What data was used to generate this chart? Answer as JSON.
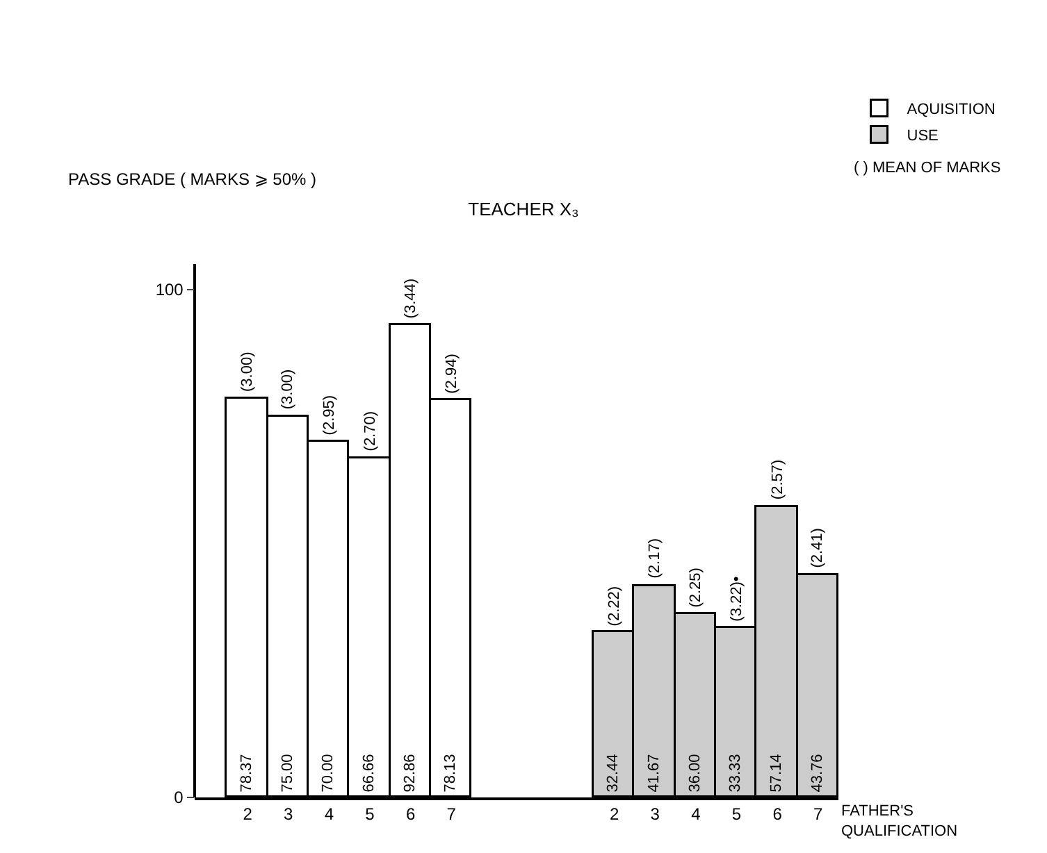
{
  "chart_data": {
    "type": "bar",
    "title": "TEACHER X₃",
    "subtitle": "PASS GRADE ( MARKS ⩾ 50% )",
    "xlabel": "FATHER'S QUALIFICATION",
    "categories": [
      "2",
      "3",
      "4",
      "5",
      "6",
      "7",
      null,
      null,
      null,
      "2",
      "3",
      "4",
      "5",
      "6",
      "7"
    ],
    "series": [
      {
        "name": "AQUISITION",
        "color": "#ffffff",
        "values": [
          78.37,
          75.0,
          70.0,
          66.66,
          92.86,
          78.13,
          null,
          null,
          null,
          null,
          null,
          null,
          null,
          null,
          null
        ],
        "value_labels": [
          "78.37",
          "75.00",
          "70.00",
          "66.66",
          "92.86",
          "78.13",
          null,
          null,
          null,
          null,
          null,
          null,
          null,
          null,
          null
        ]
      },
      {
        "name": "USE",
        "color": "#cccccc",
        "values": [
          null,
          null,
          null,
          null,
          null,
          null,
          null,
          null,
          null,
          32.44,
          41.67,
          36.0,
          33.33,
          57.14,
          43.76
        ],
        "value_labels": [
          null,
          null,
          null,
          null,
          null,
          null,
          null,
          null,
          null,
          "32.44",
          "41.67",
          "36.00",
          "33.33",
          "57.14",
          "43.76"
        ]
      }
    ],
    "ylim": [
      0,
      105
    ],
    "yticks": [
      0,
      100
    ],
    "legend": "top right",
    "annotations": [
      "( ) MEAN OF MARKS",
      "(3.00)",
      "(3.00)",
      "(2.95)",
      "(2.70)",
      "(3.44)",
      "(2.94)",
      "(2.22)",
      "(2.17)",
      "(2.25)",
      "(3.22)•",
      "(2.57)",
      "(2.41)"
    ]
  }
}
